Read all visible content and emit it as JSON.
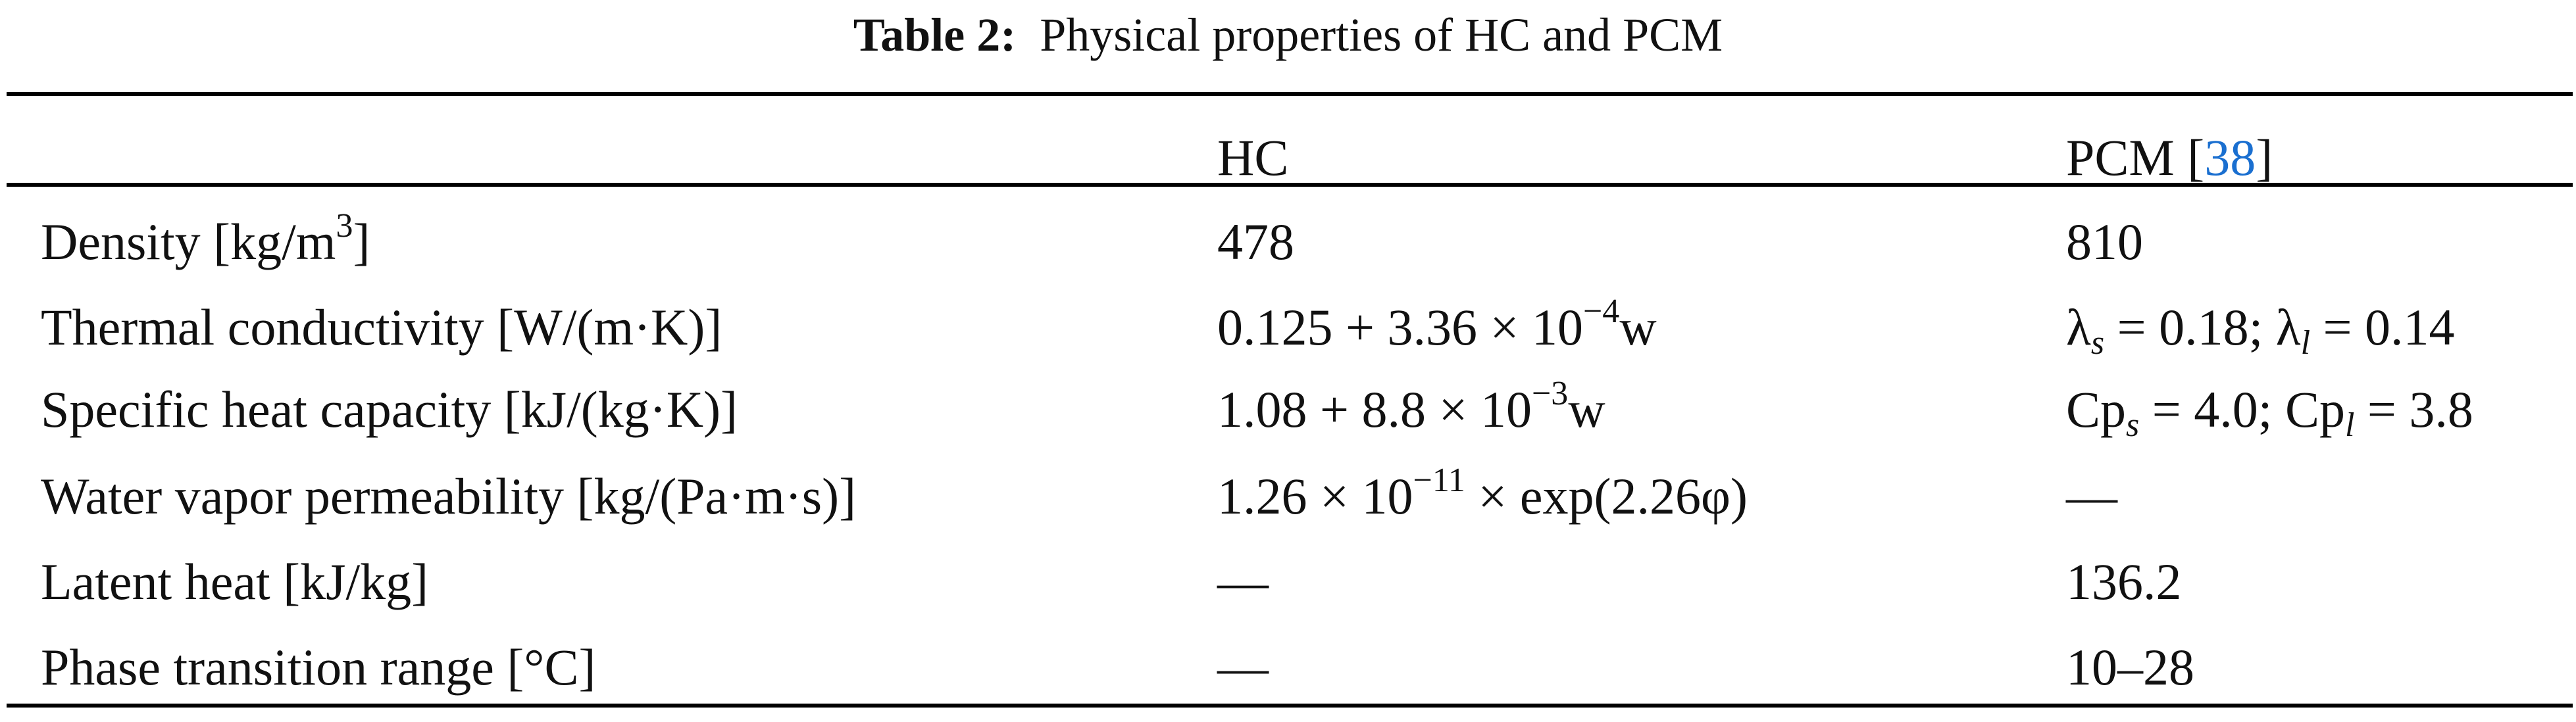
{
  "caption": {
    "label": "Table 2:",
    "text": "Physical properties of HC and PCM"
  },
  "header": {
    "col_hc": "HC",
    "col_pcm": "PCM [",
    "col_pcm_ref": "38",
    "col_pcm_close": "]"
  },
  "rows": [
    {
      "property": "Density [kg/m",
      "property_sup": "3",
      "property_end": "]",
      "hc": "478",
      "pcm": "810"
    },
    {
      "property": "Thermal conductivity [W/(m·K)]",
      "hc": "0.125 + 3.36 × 10",
      "hc_sup": "−4",
      "hc_end": "w",
      "pcm_a": "λ",
      "pcm_a_sub": "s",
      "pcm_a_val": " = 0.18; λ",
      "pcm_b_sub": "l",
      "pcm_b_val": " = 0.14"
    },
    {
      "property": "Specific heat capacity [kJ/(kg·K)]",
      "hc": "1.08 + 8.8 × 10",
      "hc_sup": "−3",
      "hc_end": "w",
      "pcm_a": "Cp",
      "pcm_a_sub": "s",
      "pcm_a_val": " = 4.0; Cp",
      "pcm_b_sub": "l",
      "pcm_b_val": " = 3.8"
    },
    {
      "property": "Water vapor permeability [kg/(Pa·m·s)]",
      "hc": "1.26 × 10",
      "hc_sup": "−11",
      "hc_end": " × exp(2.26φ)",
      "pcm": "—"
    },
    {
      "property": "Latent heat [kJ/kg]",
      "hc": "—",
      "pcm": "136.2"
    },
    {
      "property": "Phase transition range [°C]",
      "hc": "—",
      "pcm": "10–28"
    }
  ],
  "colors": {
    "reference_link": "#1a6fd0"
  }
}
